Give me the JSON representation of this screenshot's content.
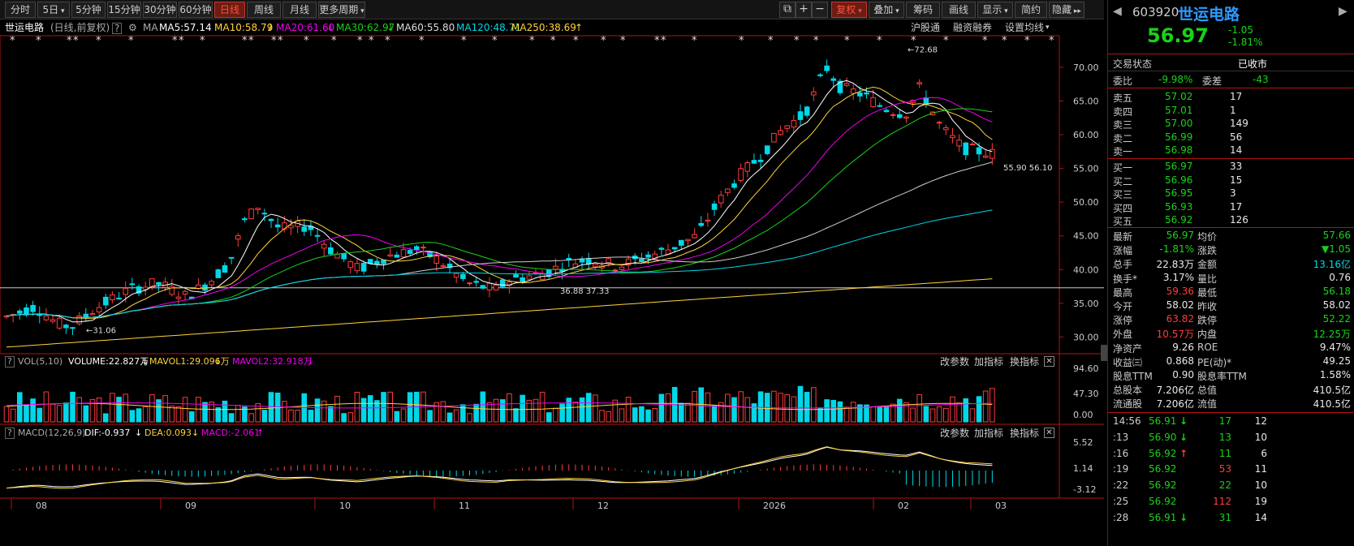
{
  "toolbar": {
    "periods": [
      "分时",
      "5日",
      "5分钟",
      "15分钟",
      "30分钟",
      "60分钟",
      "日线",
      "周线",
      "月线",
      "更多周期"
    ],
    "active": "日线",
    "right": [
      "复权",
      "叠加",
      "筹码",
      "画线",
      "显示",
      "简约",
      "隐藏"
    ],
    "icons": [
      "popout-icon",
      "plus-icon",
      "minus-icon"
    ]
  },
  "ma_bar": {
    "name": "世运电路",
    "period": "(日线,前复权)",
    "q": "?",
    "ma_label": "MA",
    "ma5": "MA5:57.14",
    "ma10": "MA10:58.79",
    "ma20": "MA20:61.60",
    "ma30": "MA30:62.97",
    "ma60": "MA60:55.80",
    "ma120": "MA120:48.71",
    "ma250": "MA250:38.69",
    "links": [
      "沪股通",
      "融资融券",
      "设置均线"
    ]
  },
  "annotations": {
    "high": "72.68",
    "low": "31.06",
    "mid_low": "36.88 37.33",
    "recent": "55.90 56.10"
  },
  "vol_bar": {
    "q": "?",
    "label": "VOL(5,10)",
    "volume": "VOLUME:22.827万",
    "mavol1": "MAVOL1:29.096万",
    "mavol2": "MAVOL2:32.918万",
    "buttons": [
      "改参数",
      "加指标",
      "换指标"
    ]
  },
  "macd_bar": {
    "q": "?",
    "label": "MACD(12,26,9)",
    "dif": "DIF:-0.937",
    "dea": "DEA:0.093",
    "macd": "MACD:-2.061",
    "buttons": [
      "改参数",
      "加指标",
      "换指标"
    ]
  },
  "price_axis": [
    "70.00",
    "65.00",
    "60.00",
    "55.00",
    "50.00",
    "45.00",
    "40.00",
    "35.00",
    "30.00"
  ],
  "vol_axis": [
    "94.60",
    "47.30",
    "0.00"
  ],
  "macd_axis": [
    "5.52",
    "1.14",
    "-3.12"
  ],
  "date_axis": [
    "08",
    "09",
    "10",
    "11",
    "12",
    "2026",
    "02",
    "03"
  ],
  "chart_data": {
    "type": "candlestick",
    "title": "世运电路 (日线,前复权)",
    "months": [
      "08",
      "09",
      "10",
      "11",
      "12",
      "2026",
      "02",
      "03"
    ],
    "ylim": [
      28,
      73
    ],
    "high": 72.68,
    "low": 31.06,
    "close": 56.97,
    "ma": {
      "MA5": 57.14,
      "MA10": 58.79,
      "MA20": 61.6,
      "MA30": 62.97,
      "MA60": 55.8,
      "MA120": 48.71,
      "MA250": 38.69
    },
    "volume": {
      "VOLUME": "22.827万",
      "MAVOL1": "29.096万",
      "MAVOL2": "32.918万",
      "ylim": [
        0,
        94.6
      ]
    },
    "macd": {
      "DIF": -0.937,
      "DEA": 0.093,
      "MACD": -2.061,
      "ylim": [
        -3.12,
        5.52
      ]
    }
  },
  "panel": {
    "code": "603920",
    "name": "世运电路",
    "price": "56.97",
    "change": "-1.05",
    "change_pct": "-1.81%",
    "status_label": "交易状态",
    "status_value": "已收市",
    "weibi_label": "委比",
    "weibi": "-9.98%",
    "weicha_label": "委差",
    "weicha": "-43",
    "asks": [
      {
        "label": "卖五",
        "price": "57.02",
        "vol": "17"
      },
      {
        "label": "卖四",
        "price": "57.01",
        "vol": "1"
      },
      {
        "label": "卖三",
        "price": "57.00",
        "vol": "149"
      },
      {
        "label": "卖二",
        "price": "56.99",
        "vol": "56"
      },
      {
        "label": "卖一",
        "price": "56.98",
        "vol": "14"
      }
    ],
    "bids": [
      {
        "label": "买一",
        "price": "56.97",
        "vol": "33"
      },
      {
        "label": "买二",
        "price": "56.96",
        "vol": "15"
      },
      {
        "label": "买三",
        "price": "56.95",
        "vol": "3"
      },
      {
        "label": "买四",
        "price": "56.93",
        "vol": "17"
      },
      {
        "label": "买五",
        "price": "56.92",
        "vol": "126"
      }
    ],
    "stats": [
      {
        "l1": "最新",
        "v1": "56.97",
        "c1": "green",
        "l2": "均价",
        "v2": "57.66",
        "c2": "green"
      },
      {
        "l1": "涨幅",
        "v1": "-1.81%",
        "c1": "green",
        "l2": "涨跌",
        "v2": "▼1.05",
        "c2": "green"
      },
      {
        "l1": "总手",
        "v1": "22.83万",
        "c1": "white",
        "l2": "金额",
        "v2": "13.16亿",
        "c2": "cyan"
      },
      {
        "l1": "换手*",
        "v1": "3.17%",
        "c1": "white",
        "l2": "量比",
        "v2": "0.76",
        "c2": "white"
      },
      {
        "l1": "最高",
        "v1": "59.36",
        "c1": "red",
        "l2": "最低",
        "v2": "56.18",
        "c2": "green"
      },
      {
        "l1": "今开",
        "v1": "58.02",
        "c1": "white",
        "l2": "昨收",
        "v2": "58.02",
        "c2": "white"
      },
      {
        "l1": "涨停",
        "v1": "63.82",
        "c1": "red",
        "l2": "跌停",
        "v2": "52.22",
        "c2": "green"
      },
      {
        "l1": "外盘",
        "v1": "10.57万",
        "c1": "red",
        "l2": "内盘",
        "v2": "12.25万",
        "c2": "green"
      },
      {
        "l1": "净资产",
        "v1": "9.26",
        "c1": "white",
        "l2": "ROE",
        "v2": "9.47%",
        "c2": "white"
      },
      {
        "l1": "收益㈢",
        "v1": "0.868",
        "c1": "white",
        "l2": "PE(动)*",
        "v2": "49.25",
        "c2": "white"
      },
      {
        "l1": "股息TTM",
        "v1": "0.90",
        "c1": "white",
        "l2": "股息率TTM",
        "v2": "1.58%",
        "c2": "white"
      },
      {
        "l1": "总股本",
        "v1": "7.206亿",
        "c1": "white",
        "l2": "总值",
        "v2": "410.5亿",
        "c2": "white"
      },
      {
        "l1": "流通股",
        "v1": "7.206亿",
        "c1": "white",
        "l2": "流值",
        "v2": "410.5亿",
        "c2": "white"
      }
    ],
    "ticks": [
      {
        "t": "14:56",
        "p": "56.91",
        "a": "↓",
        "ac": "green",
        "v": "17",
        "n": "12"
      },
      {
        "t": ":13",
        "p": "56.90",
        "a": "↓",
        "ac": "green",
        "v": "13",
        "n": "10"
      },
      {
        "t": ":16",
        "p": "56.92",
        "a": "↑",
        "ac": "red",
        "v": "11",
        "n": "6"
      },
      {
        "t": ":19",
        "p": "56.92",
        "a": "",
        "ac": "green",
        "v": "53",
        "n": "11"
      },
      {
        "t": ":22",
        "p": "56.92",
        "a": "",
        "ac": "green",
        "v": "22",
        "n": "10"
      },
      {
        "t": ":25",
        "p": "56.92",
        "a": "",
        "ac": "green",
        "v": "112",
        "n": "19"
      },
      {
        "t": ":28",
        "p": "56.91",
        "a": "↓",
        "ac": "green",
        "v": "31",
        "n": "14"
      }
    ]
  }
}
